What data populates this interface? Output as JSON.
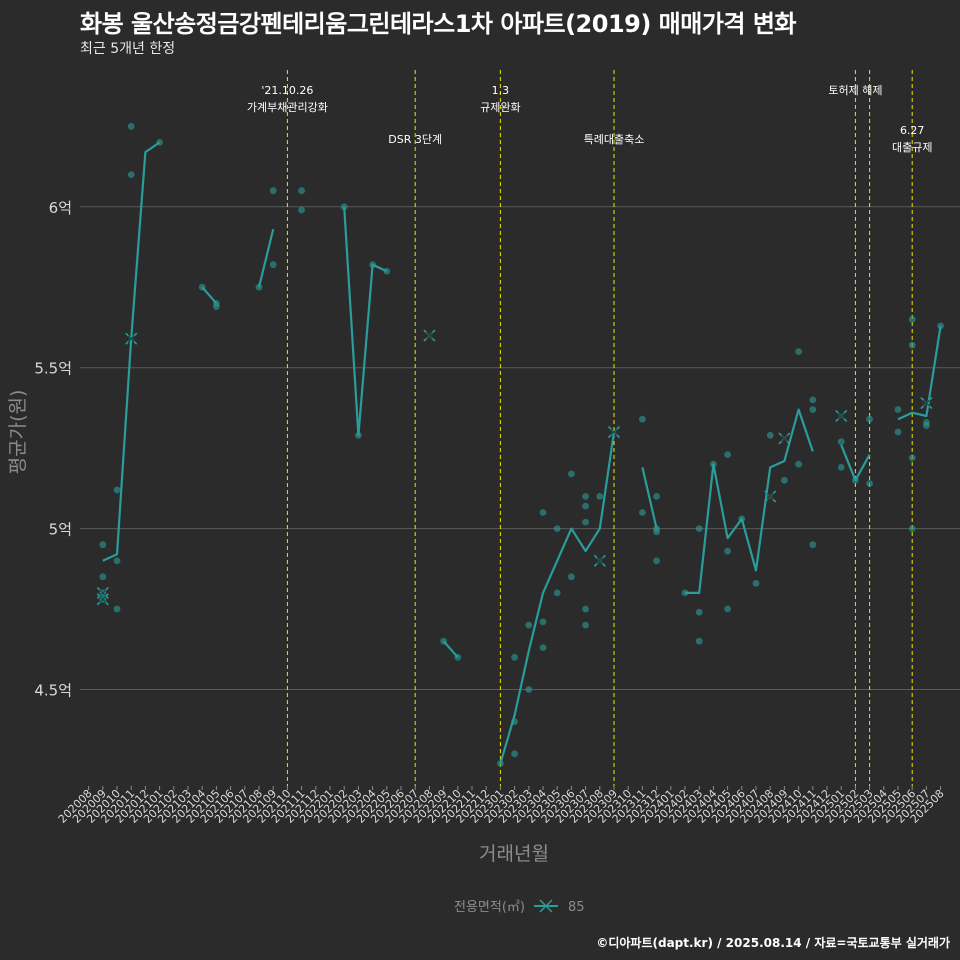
{
  "title": "화봉 울산송정금강펜테리움그린테라스1차 아파트(2019) 매매가격 변화",
  "subtitle": "최근 5개년 한정",
  "caption": "©디아파트(dapt.kr) / 2025.08.14 / 자료=국토교통부 실거래가",
  "colors": {
    "background": "#2b2b2b",
    "gridline": "#5a5a5a",
    "series": "#2a9d9a",
    "vline": "#e8e800",
    "text": "#ffffff",
    "axis_text": "#d9d9d9",
    "axis_title": "#8c8c8c"
  },
  "chart_data": {
    "type": "line",
    "xlabel": "거래년월",
    "ylabel": "평균가(원)",
    "y_unit": "억",
    "ylim": [
      4.2,
      6.45
    ],
    "y_ticks": [
      {
        "value": 4.5,
        "label": "4.5억"
      },
      {
        "value": 5.0,
        "label": "5억"
      },
      {
        "value": 5.5,
        "label": "5.5억"
      },
      {
        "value": 6.0,
        "label": "6억"
      }
    ],
    "grid": true,
    "legend": {
      "title": "전용면적(㎡)",
      "position": "bottom",
      "items": [
        "85"
      ]
    },
    "x_categories": [
      "202008",
      "202009",
      "202010",
      "202011",
      "202012",
      "202101",
      "202102",
      "202103",
      "202104",
      "202105",
      "202106",
      "202107",
      "202108",
      "202109",
      "202110",
      "202111",
      "202112",
      "202201",
      "202202",
      "202203",
      "202204",
      "202205",
      "202206",
      "202207",
      "202208",
      "202209",
      "202210",
      "202211",
      "202212",
      "202301",
      "202302",
      "202303",
      "202304",
      "202305",
      "202306",
      "202307",
      "202308",
      "202309",
      "202310",
      "202311",
      "202312",
      "202401",
      "202402",
      "202403",
      "202404",
      "202405",
      "202406",
      "202407",
      "202408",
      "202409",
      "202410",
      "202411",
      "202412",
      "202501",
      "202502",
      "202503",
      "202504",
      "202505",
      "202506",
      "202507",
      "202508"
    ],
    "events": [
      {
        "x": "202110",
        "labels": [
          "'21.10.26",
          "가계부채관리강화"
        ],
        "row": 1
      },
      {
        "x": "202207",
        "labels": [
          "DSR 3단계"
        ],
        "row": 2
      },
      {
        "x": "202301",
        "labels": [
          "1.3",
          "규제완화"
        ],
        "row": 1
      },
      {
        "x": "202309",
        "labels": [
          "특례대출축소"
        ],
        "row": 2
      },
      {
        "x": "202502",
        "labels": [
          "토허제 해제"
        ],
        "row": 1
      },
      {
        "x": "202503",
        "labels": [],
        "row": 1
      },
      {
        "x": "202506",
        "labels": [
          "6.27",
          "대출규제"
        ],
        "row": 3
      }
    ],
    "series": [
      {
        "name": "85",
        "line_segments": [
          [
            [
              "202009",
              4.9
            ],
            [
              "202010",
              4.92
            ],
            [
              "202011",
              5.59
            ],
            [
              "202012",
              6.17
            ],
            [
              "202101",
              6.2
            ]
          ],
          [
            [
              "202104",
              5.75
            ],
            [
              "202105",
              5.7
            ]
          ],
          [
            [
              "202108",
              5.75
            ],
            [
              "202109",
              5.93
            ]
          ],
          [
            [
              "202202",
              6.0
            ],
            [
              "202203",
              5.29
            ],
            [
              "202204",
              5.82
            ],
            [
              "202205",
              5.8
            ]
          ],
          [
            [
              "202209",
              4.65
            ],
            [
              "202210",
              4.6
            ]
          ],
          [
            [
              "202301",
              4.27
            ],
            [
              "202302",
              4.42
            ],
            [
              "202303",
              4.62
            ],
            [
              "202304",
              4.8
            ],
            [
              "202305",
              4.9
            ],
            [
              "202306",
              5.0
            ],
            [
              "202307",
              4.93
            ],
            [
              "202308",
              5.0
            ],
            [
              "202309",
              5.3
            ]
          ],
          [
            [
              "202311",
              5.19
            ],
            [
              "202312",
              5.0
            ]
          ],
          [
            [
              "202402",
              4.8
            ],
            [
              "202403",
              4.8
            ],
            [
              "202404",
              5.2
            ],
            [
              "202405",
              4.97
            ],
            [
              "202406",
              5.03
            ],
            [
              "202407",
              4.87
            ],
            [
              "202408",
              5.19
            ],
            [
              "202409",
              5.21
            ],
            [
              "202410",
              5.37
            ],
            [
              "202411",
              5.24
            ]
          ],
          [
            [
              "202501",
              5.26
            ],
            [
              "202502",
              5.15
            ],
            [
              "202503",
              5.23
            ]
          ],
          [
            [
              "202505",
              5.34
            ],
            [
              "202506",
              5.36
            ],
            [
              "202507",
              5.35
            ],
            [
              "202508",
              5.63
            ]
          ]
        ],
        "x_markers": [
          [
            "202009",
            4.8
          ],
          [
            "202009",
            4.78
          ],
          [
            "202011",
            5.59
          ],
          [
            "202208",
            5.6
          ],
          [
            "202308",
            4.9
          ],
          [
            "202309",
            5.3
          ],
          [
            "202408",
            5.1
          ],
          [
            "202409",
            5.28
          ],
          [
            "202501",
            5.35
          ],
          [
            "202507",
            5.39
          ]
        ],
        "points": [
          [
            "202009",
            4.95
          ],
          [
            "202009",
            4.85
          ],
          [
            "202009",
            4.8
          ],
          [
            "202009",
            4.78
          ],
          [
            "202010",
            4.9
          ],
          [
            "202010",
            4.75
          ],
          [
            "202010",
            5.12
          ],
          [
            "202011",
            6.25
          ],
          [
            "202011",
            6.1
          ],
          [
            "202101",
            6.2
          ],
          [
            "202104",
            5.75
          ],
          [
            "202105",
            5.7
          ],
          [
            "202105",
            5.69
          ],
          [
            "202108",
            5.75
          ],
          [
            "202109",
            6.05
          ],
          [
            "202109",
            5.82
          ],
          [
            "202111",
            6.05
          ],
          [
            "202111",
            5.99
          ],
          [
            "202202",
            6.0
          ],
          [
            "202203",
            5.29
          ],
          [
            "202204",
            5.82
          ],
          [
            "202205",
            5.8
          ],
          [
            "202209",
            4.65
          ],
          [
            "202210",
            4.6
          ],
          [
            "202301",
            4.27
          ],
          [
            "202302",
            4.6
          ],
          [
            "202302",
            4.4
          ],
          [
            "202302",
            4.3
          ],
          [
            "202303",
            4.7
          ],
          [
            "202303",
            4.5
          ],
          [
            "202304",
            5.05
          ],
          [
            "202304",
            4.71
          ],
          [
            "202304",
            4.63
          ],
          [
            "202305",
            5.0
          ],
          [
            "202305",
            4.8
          ],
          [
            "202306",
            5.17
          ],
          [
            "202306",
            4.85
          ],
          [
            "202307",
            5.1
          ],
          [
            "202307",
            5.07
          ],
          [
            "202307",
            5.02
          ],
          [
            "202307",
            4.75
          ],
          [
            "202307",
            4.7
          ],
          [
            "202308",
            5.1
          ],
          [
            "202311",
            5.34
          ],
          [
            "202311",
            5.05
          ],
          [
            "202312",
            5.1
          ],
          [
            "202312",
            5.0
          ],
          [
            "202312",
            4.99
          ],
          [
            "202312",
            4.9
          ],
          [
            "202402",
            4.8
          ],
          [
            "202403",
            5.0
          ],
          [
            "202403",
            4.74
          ],
          [
            "202403",
            4.65
          ],
          [
            "202404",
            5.2
          ],
          [
            "202405",
            5.23
          ],
          [
            "202405",
            4.93
          ],
          [
            "202405",
            4.75
          ],
          [
            "202406",
            5.03
          ],
          [
            "202407",
            4.83
          ],
          [
            "202408",
            5.29
          ],
          [
            "202409",
            5.15
          ],
          [
            "202410",
            5.55
          ],
          [
            "202410",
            5.2
          ],
          [
            "202411",
            5.4
          ],
          [
            "202411",
            5.37
          ],
          [
            "202411",
            4.95
          ],
          [
            "202501",
            5.27
          ],
          [
            "202501",
            5.19
          ],
          [
            "202502",
            5.15
          ],
          [
            "202503",
            5.34
          ],
          [
            "202503",
            5.14
          ],
          [
            "202505",
            5.37
          ],
          [
            "202505",
            5.3
          ],
          [
            "202506",
            5.65
          ],
          [
            "202506",
            5.57
          ],
          [
            "202506",
            5.22
          ],
          [
            "202506",
            5.0
          ],
          [
            "202507",
            5.33
          ],
          [
            "202507",
            5.32
          ],
          [
            "202508",
            5.63
          ]
        ]
      }
    ]
  }
}
